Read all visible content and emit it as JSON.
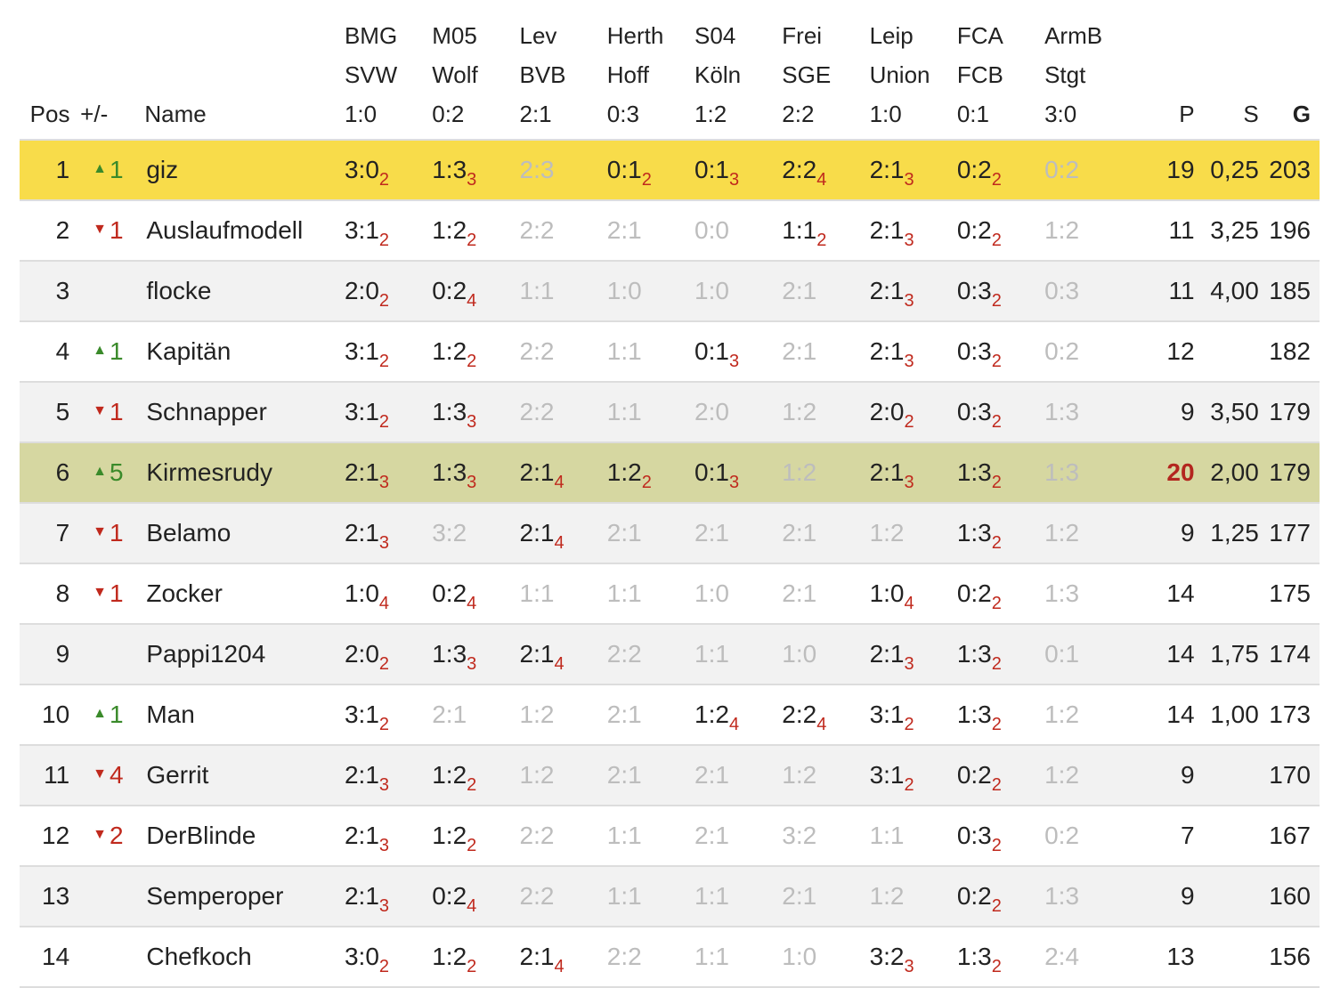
{
  "columns": {
    "pos": "Pos",
    "trend": "+/-",
    "name": "Name",
    "points": "P",
    "s": "S",
    "g": "G"
  },
  "colors": {
    "leader_row": "#f8dc4a",
    "user_row": "#d6d7a1",
    "up": "#3a8a2a",
    "down": "#c0291d",
    "missed": "#bdbdbd"
  },
  "matches": [
    {
      "home": "BMG",
      "away": "SVW",
      "result": "1:0"
    },
    {
      "home": "M05",
      "away": "Wolf",
      "result": "0:2"
    },
    {
      "home": "Lev",
      "away": "BVB",
      "result": "2:1"
    },
    {
      "home": "Herth",
      "away": "Hoff",
      "result": "0:3"
    },
    {
      "home": "S04",
      "away": "Köln",
      "result": "1:2"
    },
    {
      "home": "Frei",
      "away": "SGE",
      "result": "2:2"
    },
    {
      "home": "Leip",
      "away": "Union",
      "result": "1:0"
    },
    {
      "home": "FCA",
      "away": "FCB",
      "result": "0:1"
    },
    {
      "home": "ArmB",
      "away": "Stgt",
      "result": "3:0"
    }
  ],
  "rows": [
    {
      "pos": "1",
      "trend": "up",
      "trend_value": "1",
      "name": "giz",
      "points": "19",
      "s": "0,25",
      "g": "203",
      "highlight": "top",
      "tips": [
        [
          "3:0",
          "2"
        ],
        [
          "1:3",
          "3"
        ],
        [
          "2:3",
          ""
        ],
        [
          "0:1",
          "2"
        ],
        [
          "0:1",
          "3"
        ],
        [
          "2:2",
          "4"
        ],
        [
          "2:1",
          "3"
        ],
        [
          "0:2",
          "2"
        ],
        [
          "0:2",
          ""
        ]
      ]
    },
    {
      "pos": "2",
      "trend": "down",
      "trend_value": "1",
      "name": "Auslaufmodell",
      "points": "11",
      "s": "3,25",
      "g": "196",
      "tips": [
        [
          "3:1",
          "2"
        ],
        [
          "1:2",
          "2"
        ],
        [
          "2:2",
          ""
        ],
        [
          "2:1",
          ""
        ],
        [
          "0:0",
          ""
        ],
        [
          "1:1",
          "2"
        ],
        [
          "2:1",
          "3"
        ],
        [
          "0:2",
          "2"
        ],
        [
          "1:2",
          ""
        ]
      ]
    },
    {
      "pos": "3",
      "trend": "",
      "trend_value": "",
      "name": "flocke",
      "points": "11",
      "s": "4,00",
      "g": "185",
      "tips": [
        [
          "2:0",
          "2"
        ],
        [
          "0:2",
          "4"
        ],
        [
          "1:1",
          ""
        ],
        [
          "1:0",
          ""
        ],
        [
          "1:0",
          ""
        ],
        [
          "2:1",
          ""
        ],
        [
          "2:1",
          "3"
        ],
        [
          "0:3",
          "2"
        ],
        [
          "0:3",
          ""
        ]
      ]
    },
    {
      "pos": "4",
      "trend": "up",
      "trend_value": "1",
      "name": "Kapitän",
      "points": "12",
      "s": "",
      "g": "182",
      "tips": [
        [
          "3:1",
          "2"
        ],
        [
          "1:2",
          "2"
        ],
        [
          "2:2",
          ""
        ],
        [
          "1:1",
          ""
        ],
        [
          "0:1",
          "3"
        ],
        [
          "2:1",
          ""
        ],
        [
          "2:1",
          "3"
        ],
        [
          "0:3",
          "2"
        ],
        [
          "0:2",
          ""
        ]
      ]
    },
    {
      "pos": "5",
      "trend": "down",
      "trend_value": "1",
      "name": "Schnapper",
      "points": "9",
      "s": "3,50",
      "g": "179",
      "tips": [
        [
          "3:1",
          "2"
        ],
        [
          "1:3",
          "3"
        ],
        [
          "2:2",
          ""
        ],
        [
          "1:1",
          ""
        ],
        [
          "2:0",
          ""
        ],
        [
          "1:2",
          ""
        ],
        [
          "2:0",
          "2"
        ],
        [
          "0:3",
          "2"
        ],
        [
          "1:3",
          ""
        ]
      ]
    },
    {
      "pos": "6",
      "trend": "up",
      "trend_value": "5",
      "name": "Kirmesrudy",
      "points": "20",
      "s": "2,00",
      "g": "179",
      "highlight": "me",
      "points_hot": true,
      "tips": [
        [
          "2:1",
          "3"
        ],
        [
          "1:3",
          "3"
        ],
        [
          "2:1",
          "4"
        ],
        [
          "1:2",
          "2"
        ],
        [
          "0:1",
          "3"
        ],
        [
          "1:2",
          ""
        ],
        [
          "2:1",
          "3"
        ],
        [
          "1:3",
          "2"
        ],
        [
          "1:3",
          ""
        ]
      ]
    },
    {
      "pos": "7",
      "trend": "down",
      "trend_value": "1",
      "name": "Belamo",
      "points": "9",
      "s": "1,25",
      "g": "177",
      "tips": [
        [
          "2:1",
          "3"
        ],
        [
          "3:2",
          ""
        ],
        [
          "2:1",
          "4"
        ],
        [
          "2:1",
          ""
        ],
        [
          "2:1",
          ""
        ],
        [
          "2:1",
          ""
        ],
        [
          "1:2",
          ""
        ],
        [
          "1:3",
          "2"
        ],
        [
          "1:2",
          ""
        ]
      ]
    },
    {
      "pos": "8",
      "trend": "down",
      "trend_value": "1",
      "name": "Zocker",
      "points": "14",
      "s": "",
      "g": "175",
      "tips": [
        [
          "1:0",
          "4"
        ],
        [
          "0:2",
          "4"
        ],
        [
          "1:1",
          ""
        ],
        [
          "1:1",
          ""
        ],
        [
          "1:0",
          ""
        ],
        [
          "2:1",
          ""
        ],
        [
          "1:0",
          "4"
        ],
        [
          "0:2",
          "2"
        ],
        [
          "1:3",
          ""
        ]
      ]
    },
    {
      "pos": "9",
      "trend": "",
      "trend_value": "",
      "name": "Pappi1204",
      "points": "14",
      "s": "1,75",
      "g": "174",
      "tips": [
        [
          "2:0",
          "2"
        ],
        [
          "1:3",
          "3"
        ],
        [
          "2:1",
          "4"
        ],
        [
          "2:2",
          ""
        ],
        [
          "1:1",
          ""
        ],
        [
          "1:0",
          ""
        ],
        [
          "2:1",
          "3"
        ],
        [
          "1:3",
          "2"
        ],
        [
          "0:1",
          ""
        ]
      ]
    },
    {
      "pos": "10",
      "trend": "up",
      "trend_value": "1",
      "name": "Man",
      "points": "14",
      "s": "1,00",
      "g": "173",
      "tips": [
        [
          "3:1",
          "2"
        ],
        [
          "2:1",
          ""
        ],
        [
          "1:2",
          ""
        ],
        [
          "2:1",
          ""
        ],
        [
          "1:2",
          "4"
        ],
        [
          "2:2",
          "4"
        ],
        [
          "3:1",
          "2"
        ],
        [
          "1:3",
          "2"
        ],
        [
          "1:2",
          ""
        ]
      ]
    },
    {
      "pos": "11",
      "trend": "down",
      "trend_value": "4",
      "name": "Gerrit",
      "points": "9",
      "s": "",
      "g": "170",
      "tips": [
        [
          "2:1",
          "3"
        ],
        [
          "1:2",
          "2"
        ],
        [
          "1:2",
          ""
        ],
        [
          "2:1",
          ""
        ],
        [
          "2:1",
          ""
        ],
        [
          "1:2",
          ""
        ],
        [
          "3:1",
          "2"
        ],
        [
          "0:2",
          "2"
        ],
        [
          "1:2",
          ""
        ]
      ]
    },
    {
      "pos": "12",
      "trend": "down",
      "trend_value": "2",
      "name": "DerBlinde",
      "points": "7",
      "s": "",
      "g": "167",
      "tips": [
        [
          "2:1",
          "3"
        ],
        [
          "1:2",
          "2"
        ],
        [
          "2:2",
          ""
        ],
        [
          "1:1",
          ""
        ],
        [
          "2:1",
          ""
        ],
        [
          "3:2",
          ""
        ],
        [
          "1:1",
          ""
        ],
        [
          "0:3",
          "2"
        ],
        [
          "0:2",
          ""
        ]
      ]
    },
    {
      "pos": "13",
      "trend": "",
      "trend_value": "",
      "name": "Semperoper",
      "points": "9",
      "s": "",
      "g": "160",
      "tips": [
        [
          "2:1",
          "3"
        ],
        [
          "0:2",
          "4"
        ],
        [
          "2:2",
          ""
        ],
        [
          "1:1",
          ""
        ],
        [
          "1:1",
          ""
        ],
        [
          "2:1",
          ""
        ],
        [
          "1:2",
          ""
        ],
        [
          "0:2",
          "2"
        ],
        [
          "1:3",
          ""
        ]
      ]
    },
    {
      "pos": "14",
      "trend": "",
      "trend_value": "",
      "name": "Chefkoch",
      "points": "13",
      "s": "",
      "g": "156",
      "tips": [
        [
          "3:0",
          "2"
        ],
        [
          "1:2",
          "2"
        ],
        [
          "2:1",
          "4"
        ],
        [
          "2:2",
          ""
        ],
        [
          "1:1",
          ""
        ],
        [
          "1:0",
          ""
        ],
        [
          "3:2",
          "3"
        ],
        [
          "1:3",
          "2"
        ],
        [
          "2:4",
          ""
        ]
      ]
    }
  ]
}
